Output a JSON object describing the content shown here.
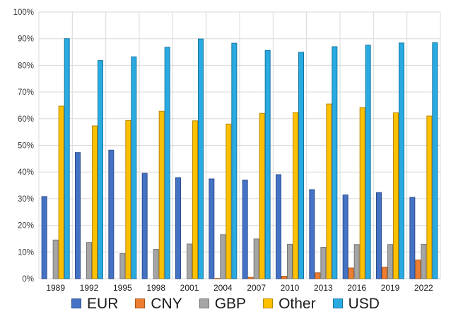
{
  "chart_data": {
    "type": "bar",
    "title": "",
    "xlabel": "",
    "ylabel": "",
    "categories": [
      "1989",
      "1992",
      "1995",
      "1998",
      "2001",
      "2004",
      "2007",
      "2010",
      "2013",
      "2016",
      "2019",
      "2022"
    ],
    "series": [
      {
        "name": "EUR",
        "color": "#4472C4",
        "border": "#2E4E8F",
        "values": [
          30.8,
          47.3,
          48.2,
          39.5,
          37.9,
          37.4,
          37.0,
          39.0,
          33.4,
          31.4,
          32.3,
          30.5
        ]
      },
      {
        "name": "CNY",
        "color": "#ED7D31",
        "border": "#AC5715",
        "values": [
          0,
          0,
          0,
          0,
          0,
          0.1,
          0.5,
          0.9,
          2.2,
          4.0,
          4.3,
          7.0
        ]
      },
      {
        "name": "GBP",
        "color": "#A5A5A5",
        "border": "#767676",
        "values": [
          14.5,
          13.6,
          9.4,
          11.0,
          13.0,
          16.5,
          14.9,
          12.9,
          11.8,
          12.8,
          12.8,
          12.9
        ]
      },
      {
        "name": "Other",
        "color": "#FFC000",
        "border": "#B78800",
        "values": [
          64.7,
          57.3,
          59.3,
          62.8,
          59.2,
          58.0,
          62.0,
          62.3,
          65.5,
          64.2,
          62.2,
          61.0
        ]
      },
      {
        "name": "USD",
        "color": "#29ABE2",
        "border": "#17759E",
        "values": [
          90.0,
          81.8,
          83.2,
          86.8,
          89.9,
          88.3,
          85.6,
          84.9,
          87.0,
          87.6,
          88.4,
          88.5
        ]
      }
    ],
    "ylim": [
      0,
      100
    ],
    "y_tick_step": 10,
    "y_tick_suffix": "%",
    "grid": true,
    "grid_color": "#D9D9D9",
    "axis_text_color": "#3b3b3b",
    "x_axis_text_color": "#1a1a1a",
    "legend_position": "bottom"
  }
}
